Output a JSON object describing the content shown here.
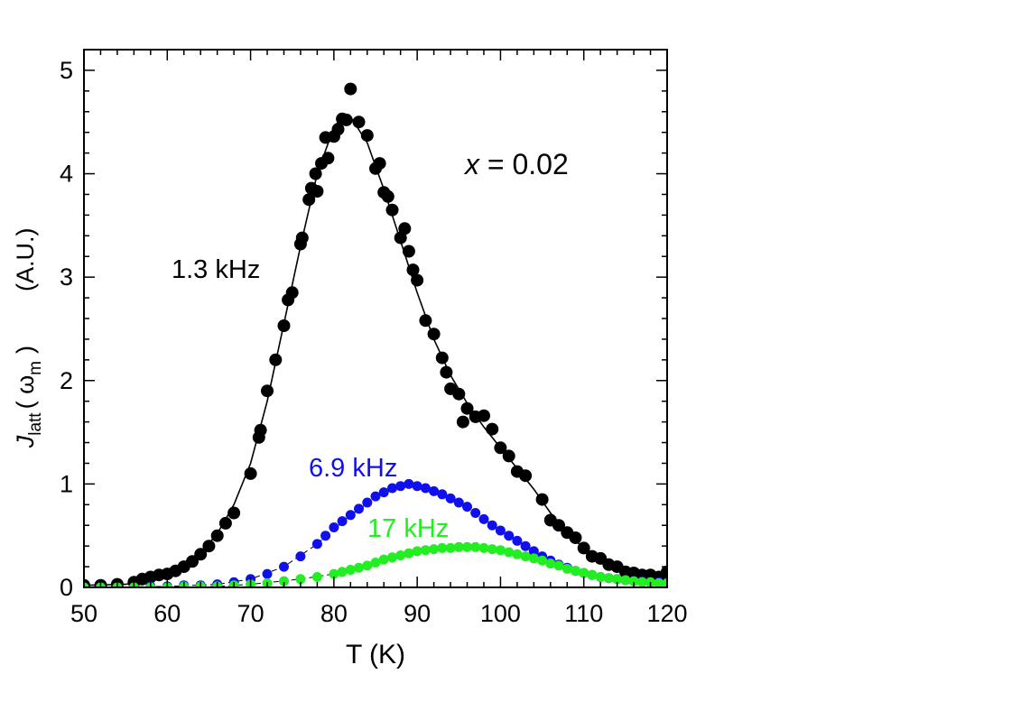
{
  "chart_data": {
    "type": "scatter",
    "xlabel": "T (K)",
    "ylabel": {
      "main": "J",
      "sub": "latt",
      "arg_open": "( ω",
      "arg_sub": "m",
      "arg_close": ")",
      "units": "(A.U.)"
    },
    "xlim": [
      50,
      120
    ],
    "ylim": [
      0,
      5.2
    ],
    "x_ticks": [
      50,
      60,
      70,
      80,
      90,
      100,
      110,
      120
    ],
    "y_ticks": [
      0,
      1,
      2,
      3,
      4,
      5
    ],
    "x_minor_step": 2,
    "y_minor_step": 0.2,
    "grid": false,
    "legend": "none",
    "composition_label": {
      "var": "x",
      "rest": " = 0.02"
    },
    "series": [
      {
        "name": "1.3 kHz",
        "color": "#000000",
        "points": [
          [
            50,
            0.02
          ],
          [
            52,
            0.02
          ],
          [
            54,
            0.03
          ],
          [
            56,
            0.05
          ],
          [
            57,
            0.08
          ],
          [
            58,
            0.1
          ],
          [
            59,
            0.12
          ],
          [
            60,
            0.13
          ],
          [
            61,
            0.16
          ],
          [
            62,
            0.2
          ],
          [
            63,
            0.25
          ],
          [
            64,
            0.32
          ],
          [
            65,
            0.4
          ],
          [
            66,
            0.5
          ],
          [
            67,
            0.62
          ],
          [
            68,
            0.72
          ],
          [
            70,
            1.1
          ],
          [
            71,
            1.45
          ],
          [
            71.2,
            1.52
          ],
          [
            72,
            1.9
          ],
          [
            73,
            2.2
          ],
          [
            74,
            2.53
          ],
          [
            74.5,
            2.78
          ],
          [
            75,
            2.85
          ],
          [
            76,
            3.32
          ],
          [
            76.2,
            3.38
          ],
          [
            77,
            3.75
          ],
          [
            77.3,
            3.86
          ],
          [
            77.8,
            4.0
          ],
          [
            78,
            3.83
          ],
          [
            78.5,
            4.1
          ],
          [
            79,
            4.35
          ],
          [
            79.3,
            4.15
          ],
          [
            80,
            4.36
          ],
          [
            80.5,
            4.43
          ],
          [
            81,
            4.53
          ],
          [
            81.5,
            4.52
          ],
          [
            82,
            4.82
          ],
          [
            83,
            4.5
          ],
          [
            84,
            4.37
          ],
          [
            85,
            4.05
          ],
          [
            85.5,
            4.1
          ],
          [
            86,
            3.82
          ],
          [
            86.5,
            3.78
          ],
          [
            87,
            3.65
          ],
          [
            88,
            3.38
          ],
          [
            88.5,
            3.47
          ],
          [
            89,
            3.25
          ],
          [
            89.5,
            3.07
          ],
          [
            90,
            2.97
          ],
          [
            91,
            2.58
          ],
          [
            92,
            2.45
          ],
          [
            93,
            2.22
          ],
          [
            93.5,
            2.08
          ],
          [
            94,
            1.92
          ],
          [
            95,
            1.87
          ],
          [
            95.5,
            1.6
          ],
          [
            96,
            1.73
          ],
          [
            97,
            1.65
          ],
          [
            98,
            1.66
          ],
          [
            99,
            1.53
          ],
          [
            100,
            1.35
          ],
          [
            101,
            1.27
          ],
          [
            102,
            1.12
          ],
          [
            103,
            1.08
          ],
          [
            105,
            0.85
          ],
          [
            106,
            0.65
          ],
          [
            107,
            0.6
          ],
          [
            108,
            0.53
          ],
          [
            109,
            0.48
          ],
          [
            110,
            0.38
          ],
          [
            111,
            0.3
          ],
          [
            112,
            0.28
          ],
          [
            113,
            0.22
          ],
          [
            114,
            0.2
          ],
          [
            115,
            0.15
          ],
          [
            116,
            0.14
          ],
          [
            117,
            0.12
          ],
          [
            118,
            0.12
          ],
          [
            119,
            0.1
          ],
          [
            120,
            0.15
          ]
        ],
        "curve": [
          [
            50,
            0.02
          ],
          [
            55,
            0.03
          ],
          [
            58,
            0.08
          ],
          [
            60,
            0.13
          ],
          [
            62,
            0.21
          ],
          [
            64,
            0.33
          ],
          [
            66,
            0.52
          ],
          [
            68,
            0.8
          ],
          [
            70,
            1.2
          ],
          [
            72,
            1.8
          ],
          [
            74,
            2.55
          ],
          [
            76,
            3.3
          ],
          [
            78,
            4.0
          ],
          [
            80,
            4.45
          ],
          [
            81,
            4.55
          ],
          [
            82,
            4.55
          ],
          [
            84,
            4.3
          ],
          [
            86,
            3.85
          ],
          [
            88,
            3.35
          ],
          [
            90,
            2.85
          ],
          [
            92,
            2.4
          ],
          [
            94,
            2.05
          ],
          [
            96,
            1.78
          ],
          [
            98,
            1.55
          ],
          [
            100,
            1.35
          ],
          [
            102,
            1.15
          ],
          [
            104,
            0.95
          ],
          [
            106,
            0.72
          ],
          [
            108,
            0.52
          ],
          [
            110,
            0.38
          ],
          [
            112,
            0.26
          ],
          [
            114,
            0.18
          ],
          [
            116,
            0.12
          ],
          [
            118,
            0.1
          ],
          [
            120,
            0.09
          ]
        ]
      },
      {
        "name": "6.9 kHz",
        "color": "#1010ee",
        "points": [
          [
            52,
            0.0
          ],
          [
            54,
            0.0
          ],
          [
            56,
            0.0
          ],
          [
            58,
            0.01
          ],
          [
            60,
            0.01
          ],
          [
            62,
            0.02
          ],
          [
            64,
            0.02
          ],
          [
            66,
            0.03
          ],
          [
            68,
            0.05
          ],
          [
            70,
            0.08
          ],
          [
            72,
            0.13
          ],
          [
            74,
            0.2
          ],
          [
            76,
            0.3
          ],
          [
            78,
            0.42
          ],
          [
            79,
            0.5
          ],
          [
            80,
            0.58
          ],
          [
            81,
            0.64
          ],
          [
            82,
            0.7
          ],
          [
            83,
            0.76
          ],
          [
            84,
            0.82
          ],
          [
            85,
            0.88
          ],
          [
            86,
            0.92
          ],
          [
            87,
            0.96
          ],
          [
            88,
            0.98
          ],
          [
            89,
            1.0
          ],
          [
            90,
            0.98
          ],
          [
            91,
            0.96
          ],
          [
            92,
            0.93
          ],
          [
            93,
            0.9
          ],
          [
            94,
            0.86
          ],
          [
            95,
            0.82
          ],
          [
            96,
            0.78
          ],
          [
            97,
            0.72
          ],
          [
            98,
            0.66
          ],
          [
            99,
            0.6
          ],
          [
            100,
            0.55
          ],
          [
            101,
            0.5
          ],
          [
            102,
            0.45
          ],
          [
            103,
            0.4
          ],
          [
            104,
            0.35
          ],
          [
            105,
            0.3
          ],
          [
            106,
            0.26
          ],
          [
            107,
            0.22
          ],
          [
            108,
            0.19
          ],
          [
            109,
            0.16
          ],
          [
            110,
            0.14
          ],
          [
            111,
            0.12
          ],
          [
            112,
            0.1
          ],
          [
            113,
            0.09
          ],
          [
            114,
            0.08
          ],
          [
            115,
            0.07
          ],
          [
            116,
            0.06
          ],
          [
            117,
            0.06
          ],
          [
            118,
            0.05
          ],
          [
            119,
            0.05
          ]
        ],
        "curve": [
          [
            50,
            0.0
          ],
          [
            60,
            0.01
          ],
          [
            66,
            0.03
          ],
          [
            70,
            0.08
          ],
          [
            74,
            0.2
          ],
          [
            78,
            0.42
          ],
          [
            82,
            0.7
          ],
          [
            86,
            0.92
          ],
          [
            89,
            1.0
          ],
          [
            92,
            0.94
          ],
          [
            96,
            0.78
          ],
          [
            100,
            0.55
          ],
          [
            104,
            0.35
          ],
          [
            108,
            0.19
          ],
          [
            112,
            0.1
          ],
          [
            116,
            0.06
          ],
          [
            120,
            0.05
          ]
        ]
      },
      {
        "name": "17 kHz",
        "color": "#22ee22",
        "points": [
          [
            50,
            0.0
          ],
          [
            52,
            0.0
          ],
          [
            54,
            0.0
          ],
          [
            56,
            0.0
          ],
          [
            58,
            0.0
          ],
          [
            60,
            0.0
          ],
          [
            62,
            0.01
          ],
          [
            64,
            0.01
          ],
          [
            66,
            0.01
          ],
          [
            68,
            0.02
          ],
          [
            70,
            0.03
          ],
          [
            72,
            0.04
          ],
          [
            74,
            0.06
          ],
          [
            76,
            0.08
          ],
          [
            78,
            0.1
          ],
          [
            80,
            0.13
          ],
          [
            81,
            0.15
          ],
          [
            82,
            0.17
          ],
          [
            83,
            0.19
          ],
          [
            84,
            0.21
          ],
          [
            85,
            0.24
          ],
          [
            86,
            0.27
          ],
          [
            87,
            0.29
          ],
          [
            88,
            0.31
          ],
          [
            89,
            0.33
          ],
          [
            90,
            0.35
          ],
          [
            91,
            0.36
          ],
          [
            92,
            0.37
          ],
          [
            93,
            0.38
          ],
          [
            94,
            0.38
          ],
          [
            95,
            0.39
          ],
          [
            96,
            0.39
          ],
          [
            97,
            0.39
          ],
          [
            98,
            0.38
          ],
          [
            99,
            0.37
          ],
          [
            100,
            0.36
          ],
          [
            101,
            0.34
          ],
          [
            102,
            0.32
          ],
          [
            103,
            0.3
          ],
          [
            104,
            0.28
          ],
          [
            105,
            0.26
          ],
          [
            106,
            0.23
          ],
          [
            107,
            0.21
          ],
          [
            108,
            0.18
          ],
          [
            109,
            0.16
          ],
          [
            110,
            0.14
          ],
          [
            111,
            0.12
          ],
          [
            112,
            0.1
          ],
          [
            113,
            0.09
          ],
          [
            114,
            0.08
          ],
          [
            115,
            0.07
          ],
          [
            116,
            0.06
          ],
          [
            117,
            0.05
          ],
          [
            118,
            0.05
          ],
          [
            119,
            0.04
          ],
          [
            120,
            0.04
          ]
        ],
        "curve": [
          [
            50,
            0.0
          ],
          [
            60,
            0.0
          ],
          [
            66,
            0.01
          ],
          [
            70,
            0.03
          ],
          [
            76,
            0.08
          ],
          [
            80,
            0.13
          ],
          [
            84,
            0.21
          ],
          [
            88,
            0.31
          ],
          [
            92,
            0.37
          ],
          [
            96,
            0.39
          ],
          [
            100,
            0.36
          ],
          [
            104,
            0.28
          ],
          [
            108,
            0.18
          ],
          [
            112,
            0.1
          ],
          [
            116,
            0.06
          ],
          [
            120,
            0.04
          ]
        ]
      }
    ]
  }
}
